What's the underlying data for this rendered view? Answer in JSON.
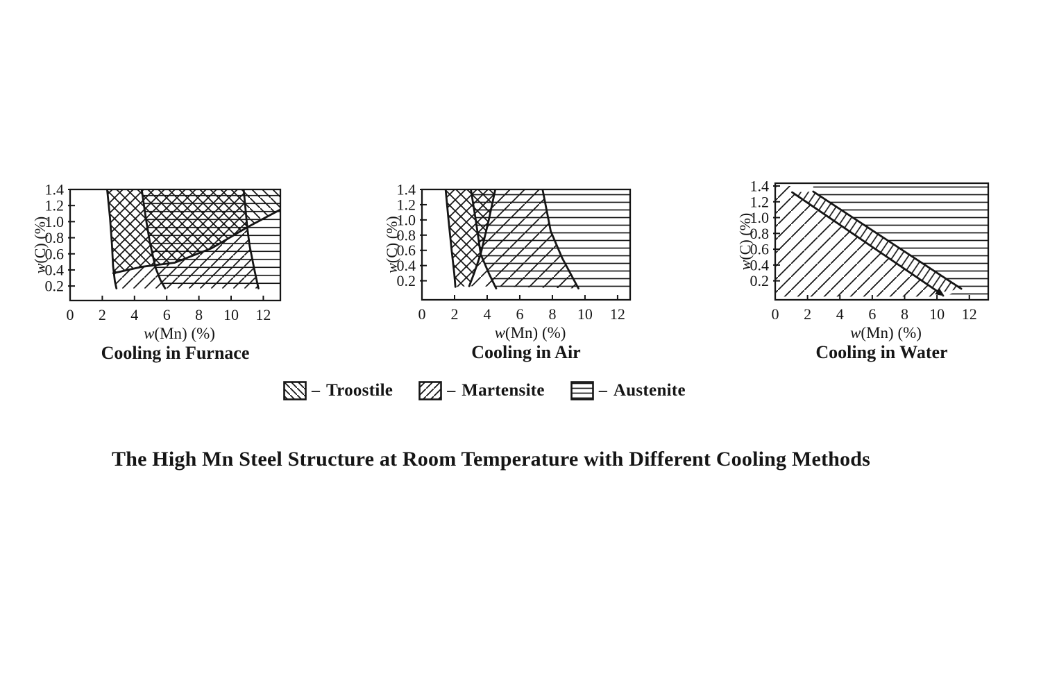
{
  "page": {
    "background": "#ffffff",
    "ink": "#151515"
  },
  "caption": "The High Mn Steel Structure at Room Temperature with Different Cooling Methods",
  "legend": {
    "separator": "–",
    "items": [
      {
        "pattern": "bslash",
        "label": "Troostile"
      },
      {
        "pattern": "fslash",
        "label": "Martensite"
      },
      {
        "pattern": "hlines",
        "label": "Austenite"
      }
    ]
  },
  "chart_data": [
    {
      "type": "area",
      "title": "Cooling in Furnace",
      "xlabel": "w(Mn) (%)",
      "ylabel": "w(C) (%)",
      "xlim": [
        0,
        13.06
      ],
      "ylim": [
        0.02,
        1.4
      ],
      "x_ticks": [
        "0",
        "2",
        "4",
        "6",
        "8",
        "10",
        "12"
      ],
      "y_ticks": [
        "1.4",
        "1.2",
        "1.0",
        "0.8",
        "0.6",
        "0.4",
        "0.2"
      ],
      "grid": false,
      "regions": [
        {
          "phase": "Troostile",
          "pattern": "cross",
          "points": [
            [
              2.3,
              1.4
            ],
            [
              2.48,
              1.05
            ],
            [
              2.6,
              0.72
            ],
            [
              2.67,
              0.45
            ],
            [
              2.7,
              0.35
            ],
            [
              4.5,
              0.44
            ],
            [
              6.5,
              0.49
            ],
            [
              8.8,
              0.67
            ],
            [
              11.0,
              0.93
            ],
            [
              10.92,
              1.1
            ],
            [
              10.78,
              1.4
            ]
          ]
        },
        {
          "phase": "Troostile",
          "pattern": "bslash",
          "points": [
            [
              10.78,
              1.4
            ],
            [
              11.0,
              0.93
            ],
            [
              13.06,
              1.15
            ],
            [
              13.06,
              1.4
            ]
          ]
        },
        {
          "phase": "Martensite",
          "pattern": "fslash",
          "points": [
            [
              2.7,
              0.35
            ],
            [
              4.5,
              0.44
            ],
            [
              6.5,
              0.49
            ],
            [
              8.8,
              0.67
            ],
            [
              11.0,
              0.93
            ],
            [
              11.15,
              0.7
            ],
            [
              11.45,
              0.4
            ],
            [
              11.7,
              0.17
            ],
            [
              2.88,
              0.17
            ],
            [
              2.78,
              0.26
            ]
          ]
        },
        {
          "phase": "Austenite",
          "pattern": "hlines",
          "points": [
            [
              4.45,
              1.4
            ],
            [
              13.06,
              1.4
            ],
            [
              13.06,
              0.18
            ],
            [
              5.9,
              0.17
            ],
            [
              5.6,
              0.28
            ],
            [
              5.3,
              0.43
            ],
            [
              4.95,
              0.75
            ],
            [
              4.7,
              1.05
            ]
          ]
        }
      ],
      "boundaries": [
        {
          "points": [
            [
              2.3,
              1.4
            ],
            [
              2.48,
              1.05
            ],
            [
              2.6,
              0.72
            ],
            [
              2.67,
              0.45
            ],
            [
              2.78,
              0.26
            ],
            [
              2.88,
              0.17
            ]
          ]
        },
        {
          "points": [
            [
              2.68,
              0.36
            ],
            [
              4.5,
              0.44
            ],
            [
              6.5,
              0.49
            ],
            [
              8.8,
              0.67
            ],
            [
              11.0,
              0.93
            ],
            [
              13.06,
              1.15
            ]
          ]
        },
        {
          "points": [
            [
              4.45,
              1.4
            ],
            [
              4.7,
              1.05
            ],
            [
              4.95,
              0.75
            ],
            [
              5.3,
              0.43
            ],
            [
              5.6,
              0.28
            ],
            [
              5.9,
              0.17
            ]
          ]
        },
        {
          "points": [
            [
              10.78,
              1.4
            ],
            [
              10.92,
              1.1
            ],
            [
              11.0,
              0.93
            ],
            [
              11.15,
              0.7
            ],
            [
              11.45,
              0.4
            ],
            [
              11.7,
              0.17
            ]
          ]
        }
      ]
    },
    {
      "type": "area",
      "title": "Cooling in Air",
      "xlabel": "w(Mn) (%)",
      "ylabel": "w(C) (%)",
      "xlim": [
        0,
        12.77
      ],
      "ylim": [
        -0.05,
        1.4
      ],
      "x_ticks": [
        "0",
        "2",
        "4",
        "6",
        "8",
        "10",
        "12"
      ],
      "y_ticks": [
        "1.4",
        "1.2",
        "1.0",
        "0.8",
        "0.6",
        "0.4",
        "0.2"
      ],
      "grid": false,
      "regions": [
        {
          "phase": "Troostile",
          "pattern": "cross",
          "points": [
            [
              1.45,
              1.4
            ],
            [
              1.63,
              1.0
            ],
            [
              1.82,
              0.6
            ],
            [
              1.98,
              0.3
            ],
            [
              2.05,
              0.12
            ],
            [
              2.9,
              0.13
            ],
            [
              3.2,
              0.3
            ],
            [
              3.6,
              0.55
            ],
            [
              4.1,
              1.0
            ],
            [
              4.5,
              1.4
            ]
          ]
        },
        {
          "phase": "Martensite",
          "pattern": "fslash",
          "points": [
            [
              4.5,
              1.4
            ],
            [
              7.4,
              1.4
            ],
            [
              7.9,
              0.85
            ],
            [
              8.6,
              0.5
            ],
            [
              9.6,
              0.1
            ],
            [
              2.9,
              0.13
            ],
            [
              3.2,
              0.3
            ],
            [
              3.6,
              0.55
            ],
            [
              4.1,
              1.0
            ]
          ]
        },
        {
          "phase": "Austenite",
          "pattern": "hlines",
          "points": [
            [
              3.0,
              1.4
            ],
            [
              12.77,
              1.4
            ],
            [
              12.77,
              0.1
            ],
            [
              4.55,
              0.1
            ],
            [
              4.1,
              0.3
            ],
            [
              3.6,
              0.55
            ],
            [
              3.3,
              1.0
            ]
          ]
        }
      ],
      "boundaries": [
        {
          "points": [
            [
              1.45,
              1.4
            ],
            [
              1.63,
              1.0
            ],
            [
              1.82,
              0.6
            ],
            [
              1.98,
              0.3
            ],
            [
              2.05,
              0.12
            ]
          ]
        },
        {
          "points": [
            [
              4.5,
              1.4
            ],
            [
              4.1,
              1.0
            ],
            [
              3.6,
              0.55
            ],
            [
              3.2,
              0.3
            ],
            [
              2.9,
              0.13
            ]
          ]
        },
        {
          "points": [
            [
              3.0,
              1.4
            ],
            [
              3.3,
              1.0
            ],
            [
              3.6,
              0.55
            ],
            [
              4.1,
              0.3
            ],
            [
              4.55,
              0.1
            ]
          ]
        },
        {
          "points": [
            [
              7.4,
              1.4
            ],
            [
              7.9,
              0.85
            ],
            [
              8.6,
              0.5
            ],
            [
              9.6,
              0.1
            ]
          ]
        }
      ]
    },
    {
      "type": "area",
      "title": "Cooling in Water",
      "xlabel": "w(Mn) (%)",
      "ylabel": "w(C) (%)",
      "xlim": [
        0,
        13.17
      ],
      "ylim": [
        -0.04,
        1.435
      ],
      "x_ticks": [
        "0",
        "2",
        "4",
        "6",
        "8",
        "10",
        "12"
      ],
      "y_ticks": [
        "1.4",
        "1.2",
        "1.0",
        "0.8",
        "0.6",
        "0.4",
        "0.2"
      ],
      "grid": false,
      "regions": [
        {
          "phase": "Martensite",
          "pattern": "fslash",
          "points": [
            [
              0,
              1.4
            ],
            [
              1.3,
              1.4
            ],
            [
              1.05,
              1.32
            ],
            [
              10.15,
              0.05
            ],
            [
              10.45,
              0.0
            ],
            [
              0,
              0.0
            ]
          ]
        },
        {
          "phase": "Transition band",
          "pattern": "band",
          "points": [
            [
              1.05,
              1.32
            ],
            [
              2.35,
              1.33
            ],
            [
              11.5,
              0.1
            ],
            [
              10.15,
              0.05
            ]
          ]
        },
        {
          "phase": "Austenite",
          "pattern": "hlines",
          "points": [
            [
              2.35,
              1.4
            ],
            [
              13.17,
              1.4
            ],
            [
              13.17,
              0.02
            ],
            [
              10.7,
              0.02
            ],
            [
              11.5,
              0.1
            ],
            [
              2.35,
              1.33
            ]
          ]
        }
      ],
      "boundaries": [
        {
          "points": [
            [
              1.05,
              1.32
            ],
            [
              10.15,
              0.05
            ]
          ],
          "arrow": true
        },
        {
          "points": [
            [
              2.35,
              1.33
            ],
            [
              11.5,
              0.1
            ]
          ]
        }
      ]
    }
  ]
}
